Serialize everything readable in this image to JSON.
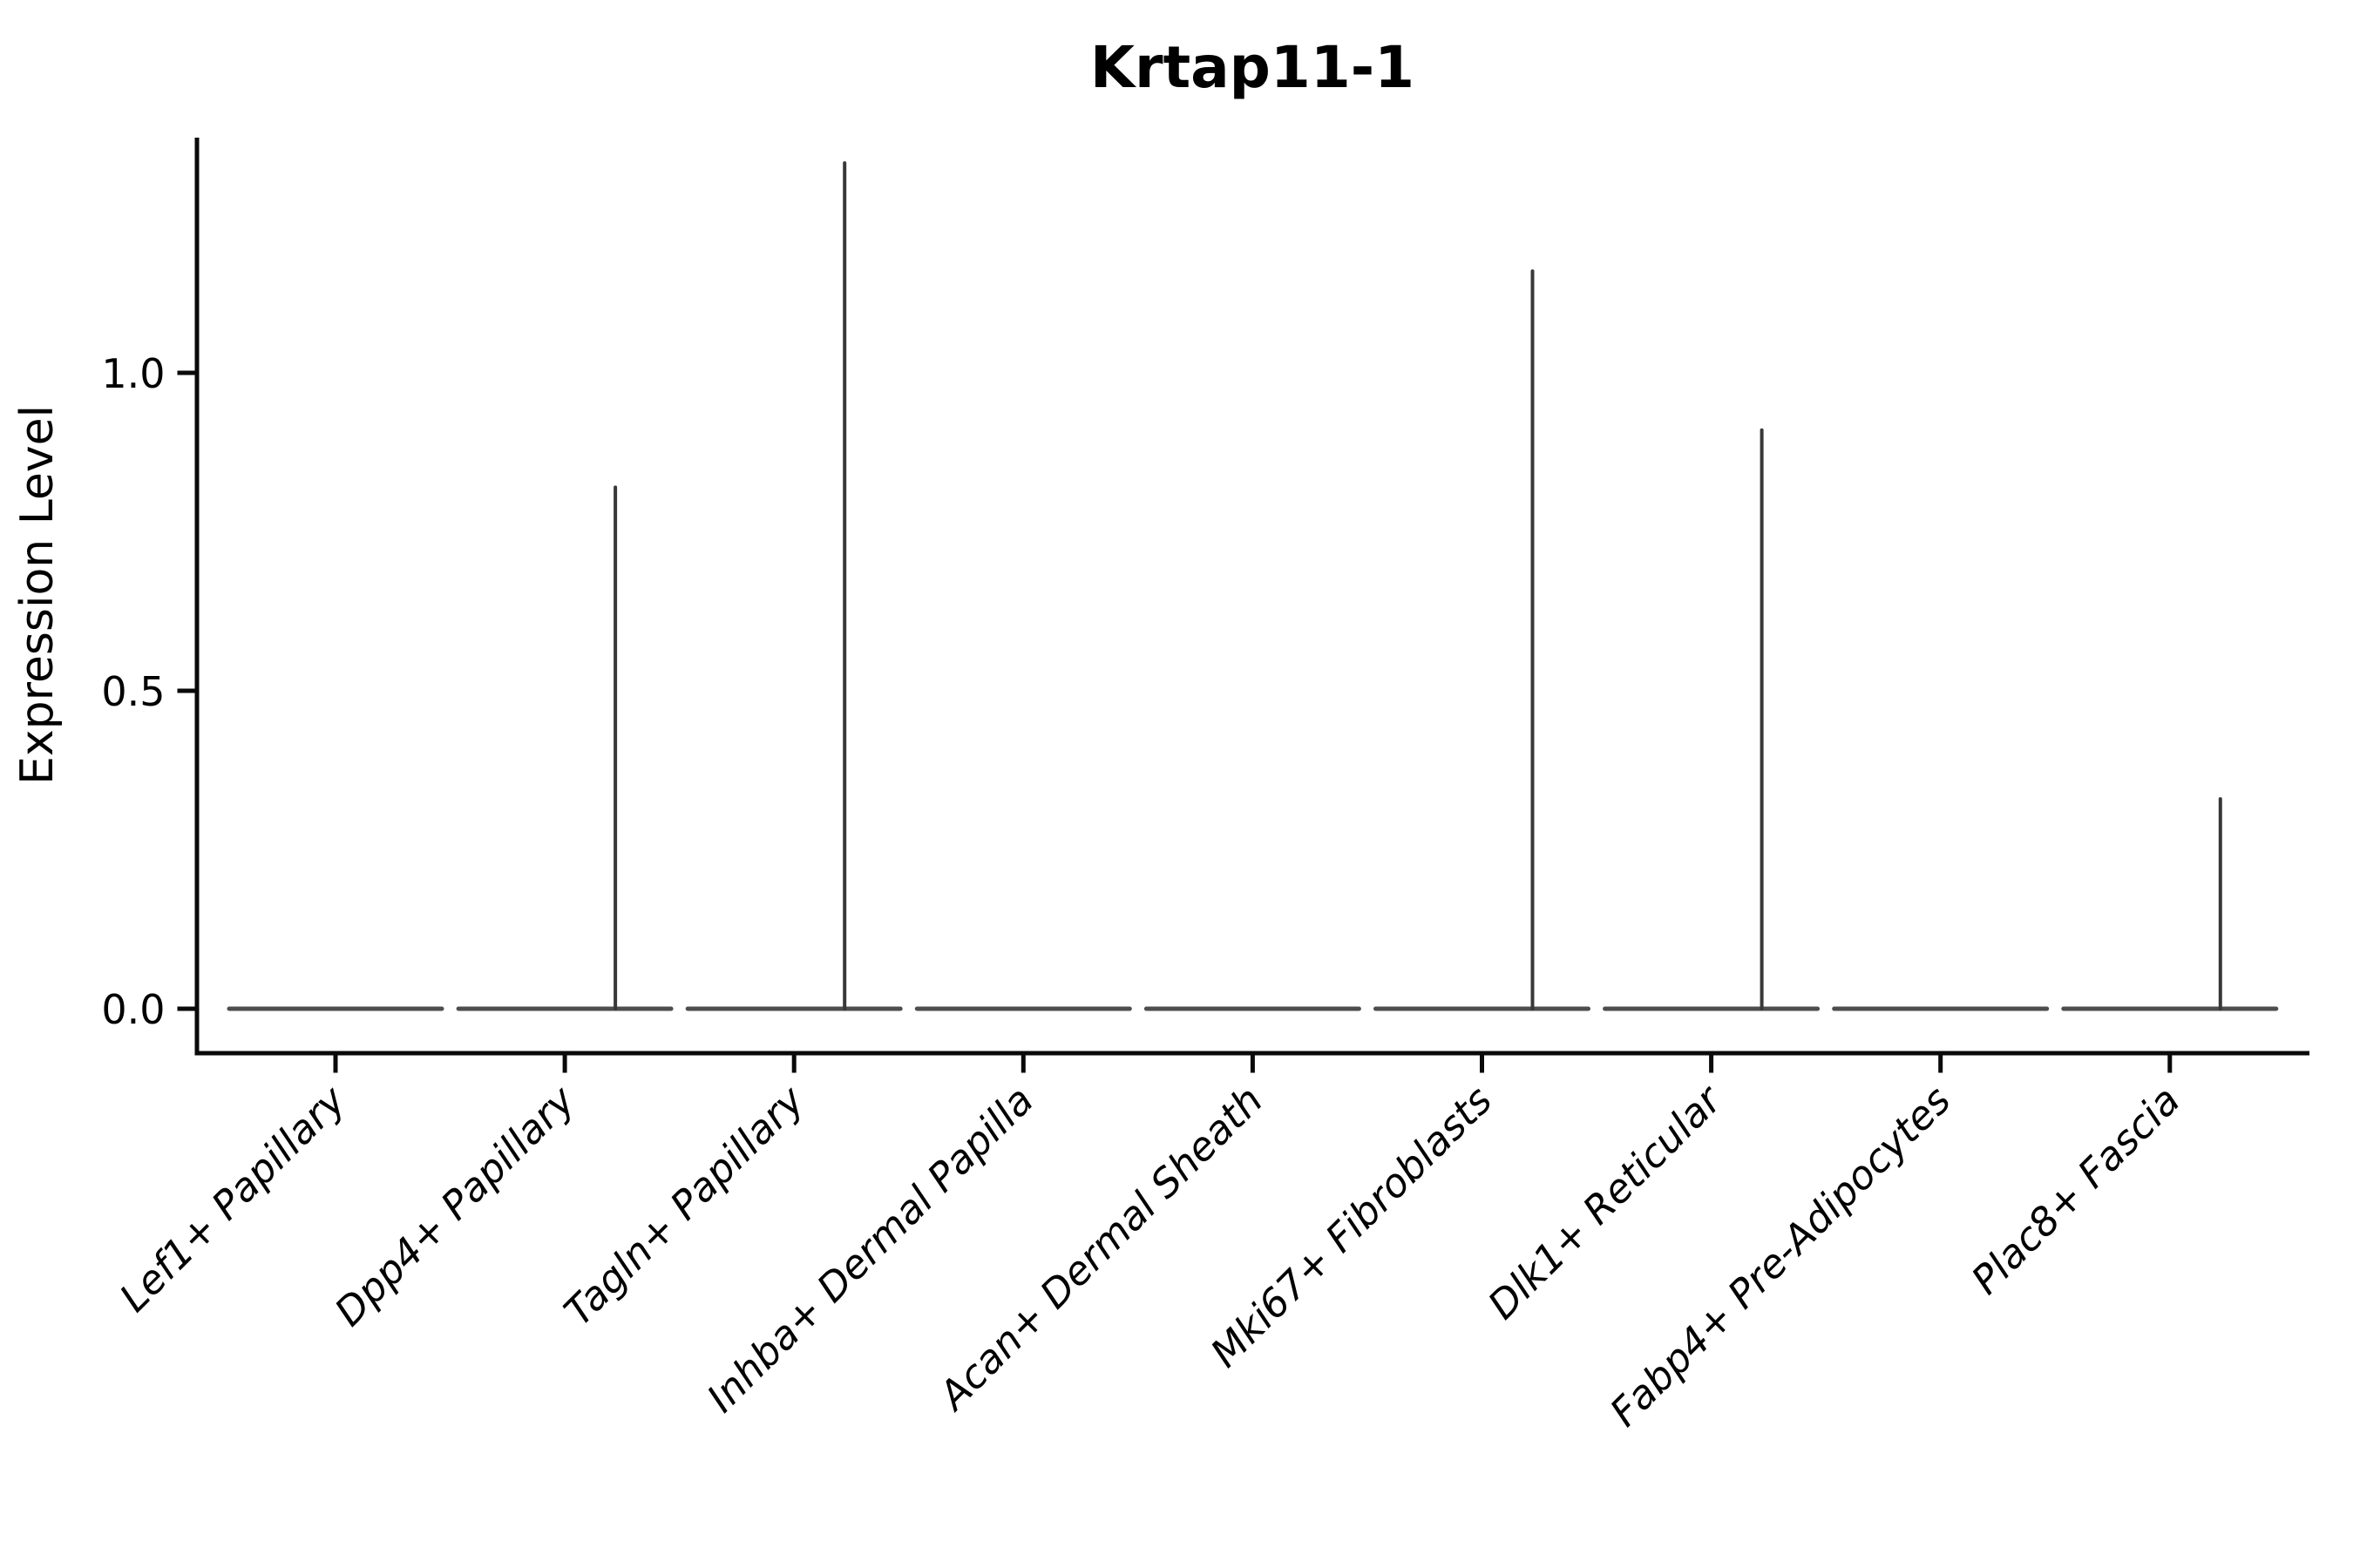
{
  "figure": {
    "background": "#ffffff"
  },
  "chart_data": {
    "type": "violin",
    "title": "Krtap11-1",
    "ylabel": "Expression Level",
    "xlabel": "",
    "ytick_labels": [
      "0.0",
      "0.5",
      "1.0"
    ],
    "ytick_values": [
      0.0,
      0.5,
      1.0
    ],
    "ylim": [
      -0.07,
      1.37
    ],
    "grid": false,
    "legend": "none",
    "categories": [
      "Lef1+ Papillary",
      "Dpp4+ Papillary",
      "Tagln+ Papillary",
      "Inhba+ Dermal Papilla",
      "Acan+ Dermal Sheath",
      "Mki67+ Fibroblasts",
      "Dlk1+ Reticular",
      "Fabp4+ Pre-Adipocytes",
      "Plac8+ Fascia"
    ],
    "violins": [
      {
        "label": "Lef1+ Papillary",
        "baseline_value": 0.0,
        "peak_value": 0.0
      },
      {
        "label": "Dpp4+ Papillary",
        "baseline_value": 0.0,
        "peak_value": 0.82
      },
      {
        "label": "Tagln+ Papillary",
        "baseline_value": 0.0,
        "peak_value": 1.33
      },
      {
        "label": "Inhba+ Dermal Papilla",
        "baseline_value": 0.0,
        "peak_value": 0.0
      },
      {
        "label": "Acan+ Dermal Sheath",
        "baseline_value": 0.0,
        "peak_value": 0.0
      },
      {
        "label": "Mki67+ Fibroblasts",
        "baseline_value": 0.0,
        "peak_value": 1.16
      },
      {
        "label": "Dlk1+ Reticular",
        "baseline_value": 0.0,
        "peak_value": 0.91
      },
      {
        "label": "Fabp4+ Pre-Adipocytes",
        "baseline_value": 0.0,
        "peak_value": 0.0
      },
      {
        "label": "Plac8+ Fascia",
        "baseline_value": 0.0,
        "peak_value": 0.33
      }
    ]
  },
  "style": {
    "text_color": "#000000",
    "spine_color": "#0a0a0a",
    "violin_flat_color": "#4d4d4d",
    "violin_spike_color": "#383838"
  }
}
